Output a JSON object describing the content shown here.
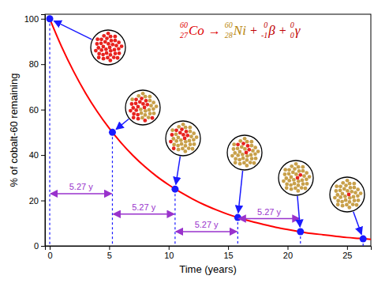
{
  "chart_data": {
    "type": "line",
    "x_label": "Time (years)",
    "y_label": "% of cobalt-60 remaining",
    "xlim": [
      -0.4,
      27
    ],
    "ylim": [
      0,
      102
    ],
    "xticks": [
      0,
      5,
      10,
      15,
      20,
      25
    ],
    "yticks": [
      0,
      20,
      40,
      60,
      80,
      100
    ],
    "grid": false,
    "series": [
      {
        "type": "line",
        "color": "#ff0000",
        "line_style": "solid",
        "x": [
          0,
          1,
          2,
          3,
          4,
          5,
          6,
          7,
          8,
          9,
          10,
          11,
          12,
          13,
          14,
          15,
          16,
          17,
          18,
          19,
          20,
          21,
          22,
          23,
          24,
          25,
          26,
          27
        ],
        "values": [
          100,
          87.7,
          76.9,
          67.4,
          59.1,
          51.8,
          45.4,
          39.8,
          34.9,
          30.6,
          26.9,
          23.6,
          20.7,
          18.1,
          15.9,
          13.9,
          12.2,
          10.7,
          9.4,
          8.2,
          7.2,
          6.3,
          5.5,
          4.9,
          4.3,
          3.7,
          3.3,
          2.9
        ]
      },
      {
        "type": "scatter",
        "color": "#1a1aff",
        "marker": "circle",
        "x": [
          0,
          5.27,
          10.54,
          15.81,
          21.08,
          26.35
        ],
        "values": [
          100,
          50,
          25,
          12.5,
          6.25,
          3.1
        ]
      }
    ],
    "half_lives": [
      {
        "x0": 0,
        "x1": 5.27,
        "y": 23,
        "label": "5.27 y"
      },
      {
        "x0": 5.27,
        "x1": 10.54,
        "y": 14,
        "label": "5.27 y"
      },
      {
        "x0": 10.54,
        "x1": 15.81,
        "y": 6.3,
        "label": "5.27 y"
      },
      {
        "x0": 15.81,
        "x1": 21.08,
        "y": 12,
        "label": "5.27 y"
      }
    ],
    "equation": [
      {
        "mass": "60",
        "atomic": "27",
        "symbol": "Co",
        "color": "#e00000"
      },
      {
        "text": "→",
        "color": "#e00000"
      },
      {
        "mass": "60",
        "atomic": "28",
        "symbol": "Ni",
        "color": "#b8860b"
      },
      {
        "text": "+",
        "color": "#c00000"
      },
      {
        "mass": "0",
        "atomic": "-1",
        "symbol": "β",
        "color": "#c00000"
      },
      {
        "text": "+",
        "color": "#c00000"
      },
      {
        "mass": "0",
        "atomic": "0",
        "symbol": "γ",
        "color": "#c00000"
      }
    ]
  }
}
